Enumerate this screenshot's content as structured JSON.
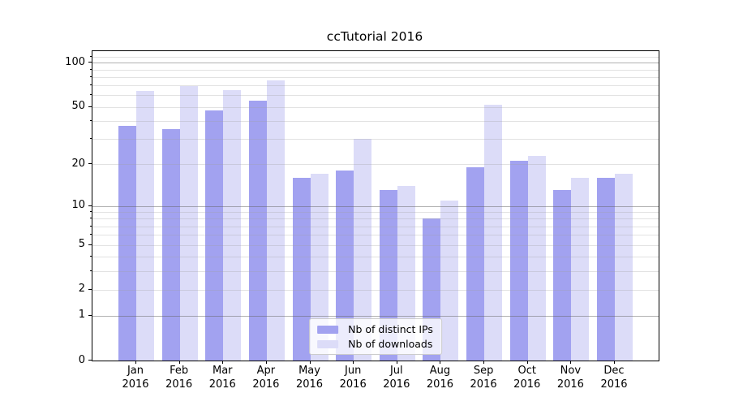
{
  "chart_data": {
    "type": "bar",
    "title": "ccTutorial 2016",
    "x_months": [
      "Jan",
      "Feb",
      "Mar",
      "Apr",
      "May",
      "Jun",
      "Jul",
      "Aug",
      "Sep",
      "Oct",
      "Nov",
      "Dec"
    ],
    "x_year": "2016",
    "series": [
      {
        "name": "Nb of distinct IPs",
        "color": "#a2a2f0",
        "values": [
          37,
          35,
          47,
          55,
          16,
          18,
          13,
          8,
          19,
          21,
          13,
          16
        ]
      },
      {
        "name": "Nb of downloads",
        "color": "#dcdcf8",
        "values": [
          64,
          69,
          65,
          76,
          17,
          30,
          14,
          11,
          52,
          23,
          16,
          17
        ]
      }
    ],
    "yscale": "log1p",
    "ylim": [
      0,
      120
    ],
    "ytick_labels": [
      "0",
      "1",
      "2",
      "5",
      "10",
      "20",
      "50",
      "100"
    ],
    "ytick_values": [
      0,
      1,
      2,
      5,
      10,
      20,
      50,
      100
    ],
    "major_gridlines": [
      1,
      10,
      100
    ],
    "minor_gridlines": [
      2,
      3,
      4,
      5,
      6,
      7,
      8,
      9,
      20,
      30,
      40,
      50,
      60,
      70,
      80,
      90,
      110
    ],
    "grid": true,
    "legend_position": "lower center"
  },
  "colors": {
    "background": "#ffffff",
    "spine": "#000000",
    "bar_dark": "#a2a2f0",
    "bar_light": "#dcdcf8",
    "major_grid": "#b0b0b0",
    "minor_grid": "#e4e4e4",
    "legend_border": "#cccccc",
    "text": "#000000"
  }
}
